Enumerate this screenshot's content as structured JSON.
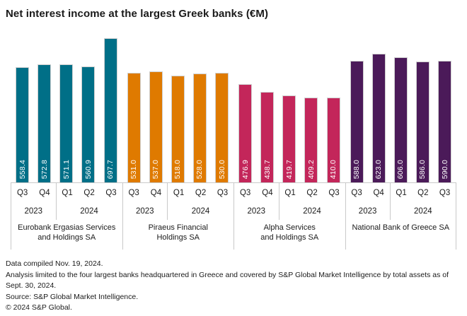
{
  "title": "Net interest income at the largest Greek banks (€M)",
  "chart_data": {
    "type": "bar",
    "title": "Net interest income at the largest Greek banks (€M)",
    "unit": "€M",
    "ylim": [
      0,
      720
    ],
    "gridlines": false,
    "legend": "none",
    "value_labels": "rotated-90-inside-bar-bottom",
    "quarters": [
      "Q3",
      "Q4",
      "Q1",
      "Q2",
      "Q3"
    ],
    "year_groups": [
      {
        "label": "2023",
        "span": 2
      },
      {
        "label": "2024",
        "span": 3
      }
    ],
    "series": [
      {
        "name": "Eurobank Ergasias Services and Holdings SA",
        "name_lines": [
          "Eurobank Ergasias Services",
          "and Holdings SA"
        ],
        "color": "#006F87",
        "values": [
          558.4,
          572.8,
          571.1,
          560.9,
          697.7
        ],
        "labels": [
          "558.4",
          "572.8",
          "571.1",
          "560.9",
          "697.7"
        ]
      },
      {
        "name": "Piraeus Financial Holdings SA",
        "name_lines": [
          "Piraeus Financial",
          "Holdings SA"
        ],
        "color": "#DF7A00",
        "values": [
          531.0,
          537.0,
          518.0,
          528.0,
          530.0
        ],
        "labels": [
          "531.0",
          "537.0",
          "518.0",
          "528.0",
          "530.0"
        ]
      },
      {
        "name": "Alpha Services and Holdings SA",
        "name_lines": [
          "Alpha Services",
          "and Holdings SA"
        ],
        "color": "#C3265A",
        "values": [
          476.9,
          438.7,
          419.7,
          409.2,
          410.0
        ],
        "labels": [
          "476.9",
          "438.7",
          "419.7",
          "409.2",
          "410.0"
        ]
      },
      {
        "name": "National Bank of Greece SA",
        "name_lines": [
          "National Bank of Greece SA"
        ],
        "color": "#4B1A59",
        "values": [
          588.0,
          623.0,
          606.0,
          586.0,
          590.0
        ],
        "labels": [
          "588.0",
          "623.0",
          "606.0",
          "586.0",
          "590.0"
        ]
      }
    ],
    "divider_color": "#c9c9c9",
    "bar_border_color": "#cfcfcf"
  },
  "footer": {
    "lines": [
      "Data compiled Nov. 19, 2024.",
      "Analysis limited to the four largest banks headquartered in Greece and covered by S&P Global Market Intelligence by total assets as of Sept. 30, 2024.",
      "Source: S&P Global Market Intelligence.",
      "© 2024 S&P Global."
    ]
  }
}
